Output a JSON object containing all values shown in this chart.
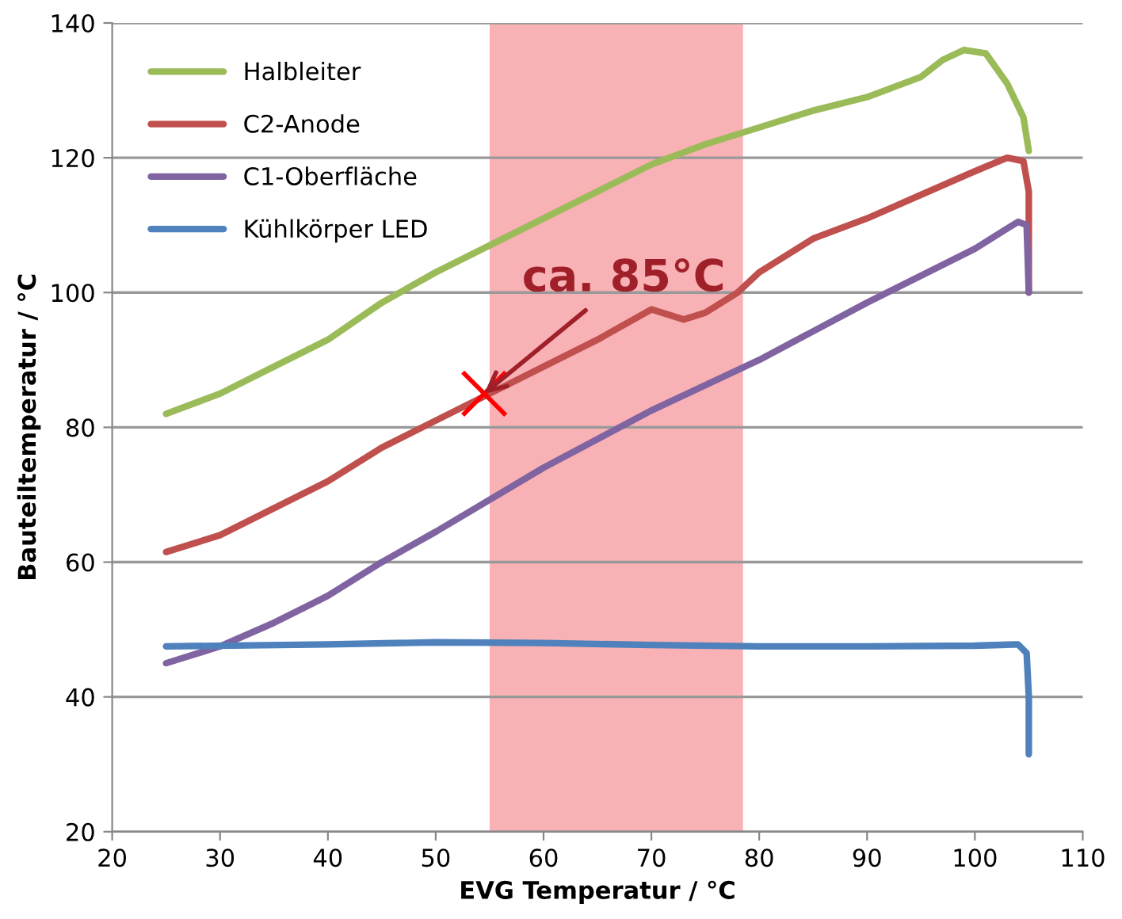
{
  "chart_data": {
    "type": "line",
    "xlabel": "EVG Temperatur / °C",
    "ylabel": "Bauteiltemperatur / °C",
    "xlim": [
      20,
      110
    ],
    "xticks": [
      20,
      30,
      40,
      50,
      60,
      70,
      80,
      90,
      100,
      110
    ],
    "ylim": [
      20,
      140
    ],
    "yticks": [
      20,
      40,
      60,
      80,
      100,
      120,
      140
    ],
    "grid": "y",
    "legend": "top left",
    "line_style": "solid",
    "series": [
      {
        "name": "Halbleiter",
        "color": "#9bbb59",
        "x": [
          25,
          30,
          35,
          40,
          45,
          50,
          55,
          60,
          65,
          70,
          75,
          80,
          85,
          90,
          95,
          97,
          99,
          101,
          103,
          104.5,
          105
        ],
        "values": [
          82,
          85,
          89,
          93,
          98.5,
          103,
          107,
          111,
          115,
          119,
          122,
          124.5,
          127,
          129,
          132,
          134.5,
          136,
          135.5,
          131,
          126,
          121
        ]
      },
      {
        "name": "C2-Anode",
        "color": "#c0504d",
        "x": [
          25,
          30,
          35,
          40,
          45,
          50,
          55,
          60,
          65,
          70,
          73,
          75,
          78,
          80,
          85,
          90,
          95,
          100,
          103,
          104.5,
          105,
          105
        ],
        "values": [
          61.5,
          64,
          68,
          72,
          77,
          81,
          85,
          89,
          93,
          97.5,
          96,
          97,
          100,
          103,
          108,
          111,
          114.5,
          118,
          120,
          119.5,
          115,
          100
        ]
      },
      {
        "name": "C1-Oberfläche",
        "color": "#8064a2",
        "x": [
          25,
          30,
          35,
          40,
          45,
          50,
          60,
          70,
          80,
          90,
          100,
          104,
          104.8,
          105
        ],
        "values": [
          45,
          47.5,
          51,
          55,
          60,
          64.5,
          74,
          82.5,
          90,
          98.5,
          106.5,
          110.5,
          110,
          100
        ]
      },
      {
        "name": "Kühlkörper LED",
        "color": "#4f81bd",
        "x": [
          25,
          40,
          50,
          60,
          70,
          80,
          90,
          100,
          104,
          104.8,
          105,
          105
        ],
        "values": [
          47.5,
          47.8,
          48.1,
          48,
          47.7,
          47.5,
          47.5,
          47.6,
          47.8,
          46.5,
          40,
          31.5
        ]
      },
      {
        "type": "scatter",
        "marker": "cross",
        "color": "#ff0000",
        "x": [
          54.5
        ],
        "values": [
          85
        ]
      }
    ],
    "bands": [
      {
        "axis": "x",
        "from": 55,
        "to": 78.5,
        "color": "#f7a8ac"
      }
    ],
    "annotations": [
      {
        "text": "ca. 85°C",
        "x": 54.5,
        "y": 85
      }
    ]
  }
}
